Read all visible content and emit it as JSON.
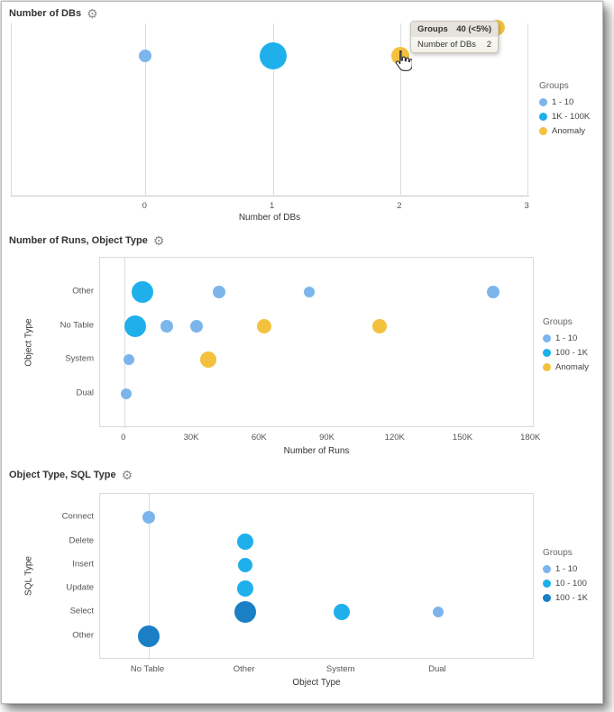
{
  "icons": {
    "gear": "⚙"
  },
  "chart_data": [
    {
      "type": "scatter",
      "title": "Number of DBs",
      "xlabel": "Number of DBs",
      "xlim": [
        -1.05,
        3.02
      ],
      "x_ticks": [
        {
          "value": 0,
          "label": "0"
        },
        {
          "value": 1,
          "label": "1"
        },
        {
          "value": 2,
          "label": "2"
        },
        {
          "value": 3,
          "label": "3"
        }
      ],
      "legend": {
        "title": "Groups",
        "position": "right",
        "entries": [
          {
            "label": "1 - 10",
            "color": "#7cb5ec"
          },
          {
            "label": "1K - 100K",
            "color": "#1fb0ec"
          },
          {
            "label": "Anomaly",
            "color": "#f3c13d"
          }
        ]
      },
      "points": [
        {
          "x": 0,
          "group": "1 - 10",
          "r": 7
        },
        {
          "x": 1,
          "group": "1K - 100K",
          "r": 15
        },
        {
          "x": 2,
          "group": "Anomaly",
          "r": 10,
          "state": "hovered"
        }
      ],
      "tooltip": {
        "header_label": "Groups",
        "header_value": "40 (<5%)",
        "row_label": "Number of DBs",
        "row_value": "2"
      }
    },
    {
      "type": "scatter",
      "title": "Number of Runs, Object Type",
      "xlabel": "Number of Runs",
      "ylabel": "Object Type",
      "xlim": [
        -10700,
        181500
      ],
      "x_ticks": [
        {
          "value": 0,
          "label": "0"
        },
        {
          "value": 30000,
          "label": "30K"
        },
        {
          "value": 60000,
          "label": "60K"
        },
        {
          "value": 90000,
          "label": "90K"
        },
        {
          "value": 120000,
          "label": "120K"
        },
        {
          "value": 150000,
          "label": "150K"
        },
        {
          "value": 180000,
          "label": "180K"
        }
      ],
      "y_categories": [
        "Other",
        "No Table",
        "System",
        "Dual"
      ],
      "legend": {
        "title": "Groups",
        "position": "right",
        "entries": [
          {
            "label": "1 - 10",
            "color": "#7cb5ec"
          },
          {
            "label": "100 - 1K",
            "color": "#1fb0ec"
          },
          {
            "label": "Anomaly",
            "color": "#f3c13d"
          }
        ]
      },
      "points": [
        {
          "x": 8000,
          "y": "Other",
          "group": "100 - 1K",
          "r": 12
        },
        {
          "x": 42000,
          "y": "Other",
          "group": "1 - 10",
          "r": 7
        },
        {
          "x": 82000,
          "y": "Other",
          "group": "1 - 10",
          "r": 6
        },
        {
          "x": 163000,
          "y": "Other",
          "group": "1 - 10",
          "r": 7
        },
        {
          "x": 5000,
          "y": "No Table",
          "group": "100 - 1K",
          "r": 12
        },
        {
          "x": 19000,
          "y": "No Table",
          "group": "1 - 10",
          "r": 7
        },
        {
          "x": 32000,
          "y": "No Table",
          "group": "1 - 10",
          "r": 7
        },
        {
          "x": 62000,
          "y": "No Table",
          "group": "Anomaly",
          "r": 8
        },
        {
          "x": 113000,
          "y": "No Table",
          "group": "Anomaly",
          "r": 8
        },
        {
          "x": 2000,
          "y": "System",
          "group": "1 - 10",
          "r": 6
        },
        {
          "x": 37000,
          "y": "System",
          "group": "Anomaly",
          "r": 9
        },
        {
          "x": 1000,
          "y": "Dual",
          "group": "1 - 10",
          "r": 6
        }
      ]
    },
    {
      "type": "scatter",
      "title": "Object Type, SQL Type",
      "xlabel": "Object Type",
      "ylabel": "SQL Type",
      "x_categories": [
        "No Table",
        "Other",
        "System",
        "Dual"
      ],
      "y_categories": [
        "Connect",
        "Delete",
        "Insert",
        "Update",
        "Select",
        "Other"
      ],
      "legend": {
        "title": "Groups",
        "position": "right",
        "entries": [
          {
            "label": "1 - 10",
            "color": "#7cb5ec"
          },
          {
            "label": "10 - 100",
            "color": "#1fb0ec"
          },
          {
            "label": "100 - 1K",
            "color": "#1a7fc4"
          }
        ]
      },
      "points": [
        {
          "x": "No Table",
          "y": "Connect",
          "group": "1 - 10",
          "r": 7
        },
        {
          "x": "Other",
          "y": "Delete",
          "group": "10 - 100",
          "r": 9
        },
        {
          "x": "Other",
          "y": "Insert",
          "group": "10 - 100",
          "r": 8
        },
        {
          "x": "Other",
          "y": "Update",
          "group": "10 - 100",
          "r": 9
        },
        {
          "x": "Other",
          "y": "Select",
          "group": "100 - 1K",
          "r": 12
        },
        {
          "x": "System",
          "y": "Select",
          "group": "10 - 100",
          "r": 9
        },
        {
          "x": "Dual",
          "y": "Select",
          "group": "1 - 10",
          "r": 6
        },
        {
          "x": "No Table",
          "y": "Other",
          "group": "100 - 1K",
          "r": 12
        }
      ]
    }
  ]
}
